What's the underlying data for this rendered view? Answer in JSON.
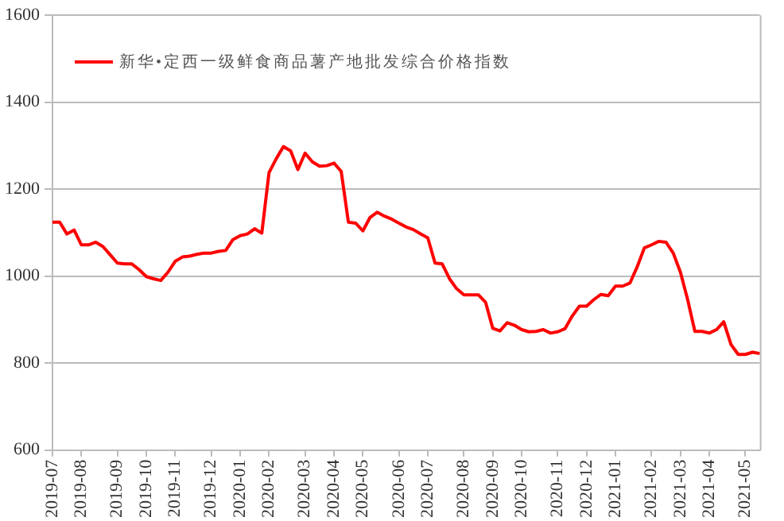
{
  "chart_data": {
    "type": "line",
    "categories": [
      "2019-07",
      null,
      null,
      null,
      "2019-08",
      null,
      null,
      null,
      null,
      "2019-09",
      null,
      null,
      null,
      "2019-10",
      null,
      null,
      null,
      "2019-11",
      null,
      null,
      null,
      null,
      "2019-12",
      null,
      null,
      null,
      "2020-01",
      null,
      null,
      null,
      "2020-02",
      null,
      null,
      null,
      null,
      "2020-03",
      null,
      null,
      null,
      "2020-04",
      null,
      null,
      null,
      "2020-05",
      null,
      null,
      null,
      null,
      "2020-06",
      null,
      null,
      null,
      "2020-07",
      null,
      null,
      null,
      null,
      "2020-08",
      null,
      null,
      null,
      "2020-09",
      null,
      null,
      null,
      "2020-10",
      null,
      null,
      null,
      null,
      "2020-11",
      null,
      null,
      null,
      "2020-12",
      null,
      null,
      null,
      "2021-01",
      null,
      null,
      null,
      null,
      "2021-02",
      null,
      null,
      null,
      "2021-03",
      null,
      null,
      null,
      "2021-04",
      null,
      null,
      null,
      null,
      "2021-05",
      null,
      null
    ],
    "series": [
      {
        "name": "新华•定西一级鲜食商品薯产地批发综合价格指数",
        "color": "#ff0000",
        "values": [
          1124,
          1124,
          1097,
          1106,
          1072,
          1072,
          1078,
          1068,
          1049,
          1030,
          1028,
          1028,
          1015,
          999,
          994,
          990,
          1009,
          1034,
          1044,
          1046,
          1050,
          1053,
          1053,
          1057,
          1059,
          1084,
          1093,
          1097,
          1109,
          1099,
          1238,
          1270,
          1298,
          1288,
          1245,
          1283,
          1263,
          1253,
          1254,
          1260,
          1241,
          1124,
          1122,
          1104,
          1135,
          1147,
          1138,
          1131,
          1122,
          1113,
          1107,
          1097,
          1088,
          1030,
          1028,
          994,
          971,
          957,
          957,
          957,
          940,
          880,
          874,
          893,
          887,
          877,
          872,
          873,
          877,
          869,
          872,
          879,
          908,
          931,
          931,
          946,
          958,
          955,
          977,
          977,
          984,
          1021,
          1065,
          1072,
          1080,
          1078,
          1053,
          1009,
          946,
          873,
          873,
          869,
          877,
          895,
          843,
          820,
          820,
          825,
          822
        ]
      }
    ],
    "ylim": [
      600,
      1600
    ],
    "yticks": [
      600,
      800,
      1000,
      1200,
      1400,
      1600
    ],
    "grid": "y",
    "legend": "top left",
    "marker": "none",
    "line_style": "solid"
  }
}
